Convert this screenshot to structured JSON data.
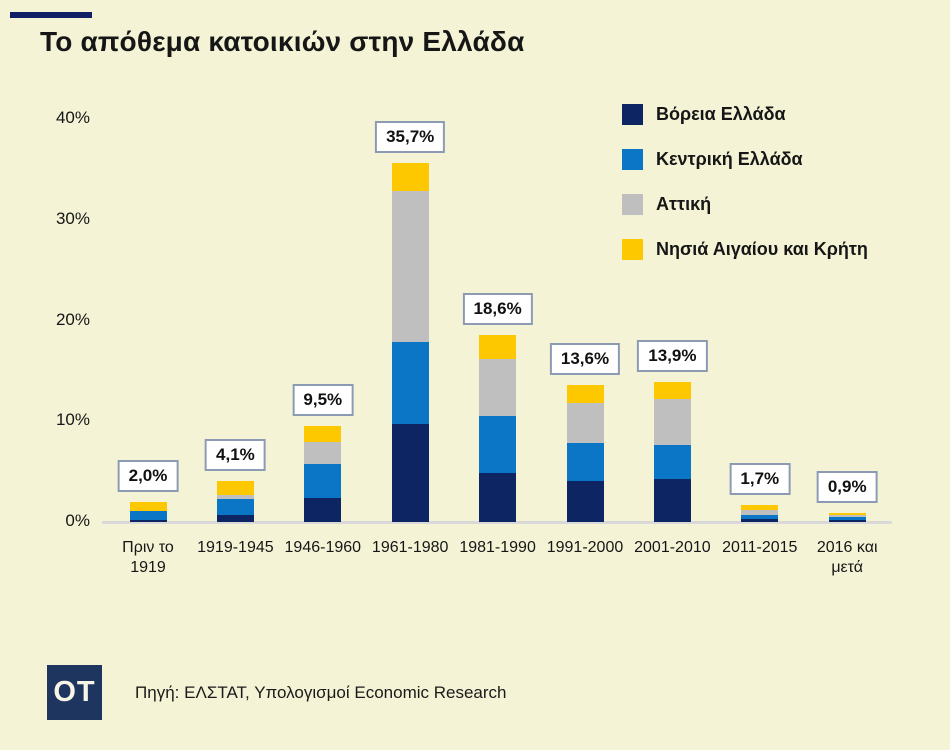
{
  "page": {
    "title": "Το απόθεμα κατοικιών στην Ελλάδα",
    "source_text": "Πηγή: ΕΛΣΤΑΤ, Υπολογισμοί Economic Research",
    "logo_text": "OT"
  },
  "colors": {
    "background": "#f4f3d6",
    "navy": "#0d2563",
    "blue": "#0b75c6",
    "gray": "#bfbfbf",
    "yellow": "#fdc800",
    "label_box_border": "#8c9ab3",
    "axis_line": "#d9d9d9",
    "logo_bg": "#1e3560",
    "brand_dash": "#101f63"
  },
  "chart_data": {
    "type": "bar",
    "stacked": true,
    "title": "Το απόθεμα κατοικιών στην Ελλάδα",
    "categories": [
      "Πριν το 1919",
      "1919-1945",
      "1946-1960",
      "1961-1980",
      "1981-1990",
      "1991-2000",
      "2001-2010",
      "2011-2015",
      "2016 και μετά"
    ],
    "series": [
      {
        "name": "Βόρεια Ελλάδα",
        "color_key": "navy",
        "values": [
          0.2,
          0.7,
          2.4,
          9.7,
          4.9,
          4.1,
          4.3,
          0.3,
          0.2
        ]
      },
      {
        "name": "Κεντρική Ελλάδα",
        "color_key": "blue",
        "values": [
          0.9,
          1.6,
          3.4,
          8.2,
          5.6,
          3.7,
          3.3,
          0.4,
          0.25
        ]
      },
      {
        "name": "Αττική",
        "color_key": "gray",
        "values": [
          0.0,
          0.4,
          2.1,
          15.0,
          5.7,
          4.0,
          4.6,
          0.5,
          0.25
        ]
      },
      {
        "name": "Νησιά Αιγαίου και Κρήτη",
        "color_key": "yellow",
        "values": [
          0.9,
          1.4,
          1.6,
          2.8,
          2.4,
          1.8,
          1.7,
          0.5,
          0.2
        ]
      }
    ],
    "total_labels": [
      "2,0%",
      "4,1%",
      "9,5%",
      "35,7%",
      "18,6%",
      "13,6%",
      "13,9%",
      "1,7%",
      "0,9%"
    ],
    "y_ticks": [
      "0%",
      "10%",
      "20%",
      "30%",
      "40%"
    ],
    "ylim": [
      0,
      40
    ],
    "grid": false,
    "legend_position": "top-right",
    "value_format": "percent-comma-decimal"
  }
}
